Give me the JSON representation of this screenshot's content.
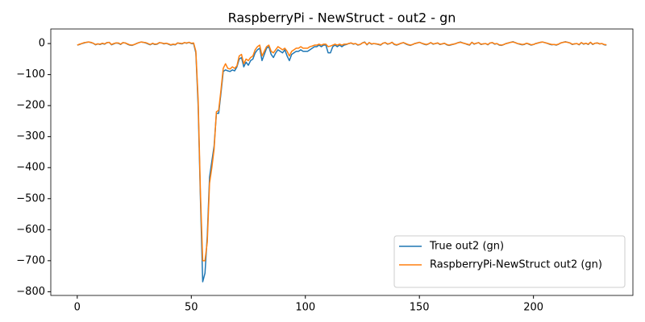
{
  "chart_data": {
    "type": "line",
    "title": "RaspberryPi - NewStruct - out2 - gn",
    "x": [
      0,
      1,
      2,
      3,
      4,
      5,
      6,
      7,
      8,
      9,
      10,
      11,
      12,
      13,
      14,
      15,
      16,
      17,
      18,
      19,
      20,
      21,
      22,
      23,
      24,
      25,
      26,
      27,
      28,
      29,
      30,
      31,
      32,
      33,
      34,
      35,
      36,
      37,
      38,
      39,
      40,
      41,
      42,
      43,
      44,
      45,
      46,
      47,
      48,
      49,
      50,
      51,
      52,
      53,
      54,
      55,
      56,
      57,
      58,
      59,
      60,
      61,
      62,
      63,
      64,
      65,
      66,
      67,
      68,
      69,
      70,
      71,
      72,
      73,
      74,
      75,
      76,
      77,
      78,
      79,
      80,
      81,
      82,
      83,
      84,
      85,
      86,
      87,
      88,
      89,
      90,
      91,
      92,
      93,
      94,
      95,
      96,
      97,
      98,
      99,
      100,
      101,
      102,
      103,
      104,
      105,
      106,
      107,
      108,
      109,
      110,
      111,
      112,
      113,
      114,
      115,
      116,
      117,
      118,
      119,
      120,
      121,
      122,
      123,
      124,
      125,
      126,
      127,
      128,
      129,
      130,
      131,
      132,
      133,
      134,
      135,
      136,
      137,
      138,
      139,
      140,
      141,
      142,
      143,
      144,
      145,
      146,
      147,
      148,
      149,
      150,
      151,
      152,
      153,
      154,
      155,
      156,
      157,
      158,
      159,
      160,
      161,
      162,
      163,
      164,
      165,
      166,
      167,
      168,
      169,
      170,
      171,
      172,
      173,
      174,
      175,
      176,
      177,
      178,
      179,
      180,
      181,
      182,
      183,
      184,
      185,
      186,
      187,
      188,
      189,
      190,
      191,
      192,
      193,
      194,
      195,
      196,
      197,
      198,
      199,
      200,
      201,
      202,
      203,
      204,
      205,
      206,
      207,
      208,
      209,
      210,
      211,
      212,
      213,
      214,
      215,
      216,
      217,
      218,
      219,
      220,
      221,
      222,
      223,
      224,
      225,
      226,
      227,
      228,
      229,
      230,
      231,
      232
    ],
    "series": [
      {
        "name": "True out2 (gn)",
        "color": "#1f77b4",
        "values": [
          -5,
          -3,
          0,
          2,
          4,
          5,
          3,
          1,
          -4,
          -1,
          -3,
          0,
          -2,
          3,
          4,
          -4,
          -1,
          2,
          1,
          -3,
          3,
          2,
          -2,
          -5,
          -6,
          -3,
          0,
          3,
          5,
          4,
          2,
          -1,
          -4,
          0,
          -3,
          -2,
          3,
          2,
          -1,
          1,
          -2,
          -5,
          -3,
          -4,
          2,
          0,
          -1,
          3,
          1,
          4,
          0,
          0,
          -30,
          -200,
          -500,
          -768,
          -740,
          -620,
          -430,
          -380,
          -330,
          -225,
          -225,
          -160,
          -90,
          -85,
          -88,
          -90,
          -85,
          -88,
          -75,
          -50,
          -45,
          -75,
          -60,
          -70,
          -55,
          -50,
          -30,
          -20,
          -15,
          -55,
          -35,
          -15,
          -10,
          -35,
          -45,
          -30,
          -20,
          -25,
          -30,
          -20,
          -40,
          -55,
          -35,
          -30,
          -25,
          -25,
          -20,
          -25,
          -25,
          -25,
          -20,
          -15,
          -10,
          -10,
          -5,
          -10,
          -5,
          -5,
          -30,
          -30,
          -10,
          -5,
          -10,
          -5,
          -10,
          -5,
          -3,
          0,
          2,
          -2,
          0,
          -5,
          -3,
          2,
          5,
          -4,
          3,
          -2,
          0,
          -1,
          -3,
          -5,
          1,
          3,
          -2,
          0,
          4,
          -3,
          -5,
          -2,
          1,
          3,
          -1,
          -4,
          -6,
          -3,
          0,
          2,
          4,
          1,
          -2,
          -4,
          -1,
          3,
          -2,
          0,
          2,
          -3,
          -1,
          1,
          -4,
          -6,
          -4,
          -2,
          0,
          3,
          5,
          2,
          0,
          -3,
          -5,
          4,
          -2,
          1,
          3,
          -3,
          -1,
          0,
          -4,
          2,
          3,
          -2,
          0,
          -5,
          -6,
          -3,
          0,
          2,
          4,
          6,
          3,
          0,
          -2,
          -4,
          -3,
          1,
          -2,
          -5,
          -3,
          0,
          2,
          4,
          5,
          3,
          1,
          -2,
          -4,
          -3,
          -5,
          -2,
          2,
          4,
          6,
          4,
          2,
          -3,
          -1,
          0,
          -4,
          3,
          -2,
          1,
          -3,
          4,
          -3,
          1,
          2,
          -1,
          0,
          -4,
          -5
        ]
      },
      {
        "name": "RaspberryPi-NewStruct out2 (gn)",
        "color": "#ff7f0e",
        "values": [
          -5,
          -2,
          0,
          3,
          4,
          5,
          4,
          1,
          -3,
          -1,
          -2,
          1,
          -1,
          3,
          4,
          -3,
          0,
          2,
          2,
          -2,
          3,
          2,
          -1,
          -4,
          -5,
          -3,
          0,
          3,
          5,
          4,
          3,
          0,
          -3,
          1,
          -2,
          -1,
          3,
          2,
          0,
          1,
          -1,
          -4,
          -2,
          -3,
          2,
          1,
          0,
          3,
          2,
          4,
          1,
          2,
          -25,
          -180,
          -480,
          -700,
          -700,
          -640,
          -450,
          -400,
          -340,
          -220,
          -215,
          -150,
          -80,
          -65,
          -80,
          -82,
          -75,
          -80,
          -72,
          -40,
          -35,
          -65,
          -50,
          -55,
          -45,
          -40,
          -20,
          -10,
          -5,
          -40,
          -25,
          -10,
          -5,
          -25,
          -30,
          -20,
          -10,
          -15,
          -20,
          -15,
          -25,
          -40,
          -25,
          -20,
          -15,
          -15,
          -10,
          -15,
          -15,
          -15,
          -10,
          -8,
          -5,
          -5,
          -2,
          -5,
          -2,
          -2,
          -10,
          -8,
          -5,
          -2,
          -5,
          -2,
          -5,
          -2,
          -2,
          0,
          2,
          -1,
          0,
          -4,
          -3,
          2,
          4,
          -3,
          3,
          -1,
          0,
          -1,
          -2,
          -4,
          1,
          3,
          -1,
          0,
          4,
          -2,
          -4,
          -2,
          1,
          3,
          0,
          -3,
          -5,
          -3,
          0,
          2,
          4,
          1,
          -1,
          -3,
          -1,
          3,
          -1,
          0,
          2,
          -2,
          -1,
          1,
          -3,
          -5,
          -3,
          -2,
          0,
          3,
          4,
          2,
          0,
          -2,
          -4,
          4,
          -1,
          1,
          3,
          -2,
          -1,
          0,
          -3,
          2,
          3,
          -1,
          0,
          -4,
          -5,
          -3,
          0,
          2,
          4,
          5,
          3,
          0,
          -1,
          -3,
          -2,
          1,
          -1,
          -4,
          -3,
          0,
          2,
          4,
          5,
          3,
          1,
          -1,
          -3,
          -3,
          -4,
          -2,
          2,
          4,
          5,
          4,
          2,
          -2,
          -1,
          0,
          -3,
          3,
          -1,
          1,
          -2,
          4,
          -2,
          1,
          2,
          -1,
          0,
          -3,
          -4
        ]
      }
    ],
    "xlim": [
      -11.6,
      243.6
    ],
    "ylim": [
      -812,
      47
    ],
    "xticks": [
      0,
      50,
      100,
      150,
      200
    ],
    "yticks": [
      {
        "value": 0,
        "label": "0"
      },
      {
        "value": -100,
        "label": "−100"
      },
      {
        "value": -200,
        "label": "−200"
      },
      {
        "value": -300,
        "label": "−300"
      },
      {
        "value": -400,
        "label": "−400"
      },
      {
        "value": -500,
        "label": "−500"
      },
      {
        "value": -600,
        "label": "−600"
      },
      {
        "value": -700,
        "label": "−700"
      },
      {
        "value": -800,
        "label": "−800"
      }
    ],
    "legend": "lower right",
    "grid": false
  }
}
